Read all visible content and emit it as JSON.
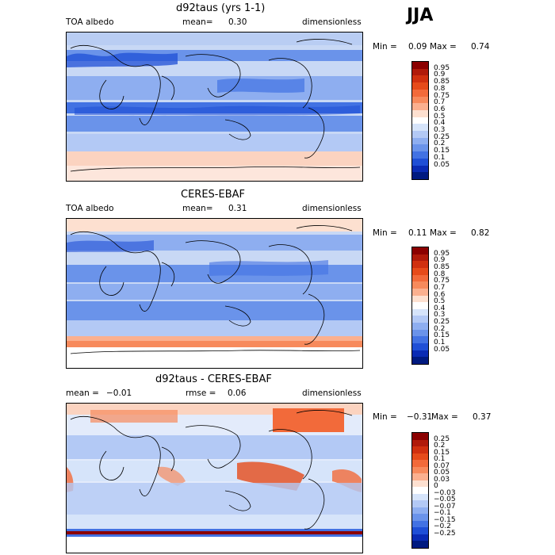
{
  "season": "JJA",
  "panels": [
    {
      "title": "d92taus (yrs 1-1)",
      "variable": "TOA albedo",
      "stat_label": "mean=",
      "stat_value": "0.30",
      "units": "dimensionless",
      "min_label": "Min =",
      "min_value": "0.09",
      "max_label": "Max =",
      "max_value": "0.74",
      "colorbar": {
        "levels": [
          "0.95",
          "0.9",
          "0.85",
          "0.8",
          "0.75",
          "0.7",
          "0.6",
          "0.5",
          "0.4",
          "0.3",
          "0.25",
          "0.2",
          "0.15",
          "0.1",
          "0.05"
        ],
        "colors": [
          "#8b0000",
          "#b01a0a",
          "#d0300f",
          "#e64b1a",
          "#f26a3a",
          "#f78a5c",
          "#fbb08f",
          "#fde0d0",
          "#ffffff",
          "#d6e4fa",
          "#b3c9f5",
          "#8eaef0",
          "#6a93ea",
          "#4272e3",
          "#1f4fd6",
          "#0a2bb4",
          "#001a80"
        ]
      }
    },
    {
      "title": "CERES-EBAF",
      "variable": "TOA albedo",
      "stat_label": "mean=",
      "stat_value": "0.31",
      "units": "dimensionless",
      "min_label": "Min =",
      "min_value": "0.11",
      "max_label": "Max =",
      "max_value": "0.82",
      "colorbar": {
        "levels": [
          "0.95",
          "0.9",
          "0.85",
          "0.8",
          "0.75",
          "0.7",
          "0.6",
          "0.5",
          "0.4",
          "0.3",
          "0.25",
          "0.2",
          "0.15",
          "0.1",
          "0.05"
        ],
        "colors": [
          "#8b0000",
          "#b01a0a",
          "#d0300f",
          "#e64b1a",
          "#f26a3a",
          "#f78a5c",
          "#fbb08f",
          "#fde0d0",
          "#ffffff",
          "#d6e4fa",
          "#b3c9f5",
          "#8eaef0",
          "#6a93ea",
          "#4272e3",
          "#1f4fd6",
          "#0a2bb4",
          "#001a80"
        ]
      }
    },
    {
      "title": "d92taus - CERES-EBAF",
      "variable": "mean =",
      "stat_label": "rmse =",
      "stat_value": "0.06",
      "variable_value": "−0.01",
      "units": "dimensionless",
      "min_label": "Min =",
      "min_value": "−0.31",
      "max_label": "Max =",
      "max_value": "0.37",
      "colorbar": {
        "levels": [
          "0.25",
          "0.2",
          "0.15",
          "0.1",
          "0.07",
          "0.05",
          "0.03",
          "0",
          "−0.03",
          "−0.05",
          "−0.07",
          "−0.1",
          "−0.15",
          "−0.2",
          "−0.25"
        ],
        "colors": [
          "#8b0000",
          "#b01a0a",
          "#d0300f",
          "#e64b1a",
          "#f26a3a",
          "#f78a5c",
          "#fbb08f",
          "#fde0d0",
          "#ffffff",
          "#d6e4fa",
          "#b3c9f5",
          "#8eaef0",
          "#6a93ea",
          "#4272e3",
          "#1f4fd6",
          "#0a2bb4",
          "#001a80"
        ]
      }
    }
  ],
  "chart_data": [
    {
      "type": "heatmap",
      "title": "d92taus (yrs 1-1)",
      "field": "TOA albedo",
      "units": "dimensionless",
      "mean": 0.3,
      "min": 0.09,
      "max": 0.74,
      "levels": [
        0.05,
        0.1,
        0.15,
        0.2,
        0.25,
        0.3,
        0.4,
        0.5,
        0.6,
        0.7,
        0.75,
        0.8,
        0.85,
        0.9,
        0.95
      ]
    },
    {
      "type": "heatmap",
      "title": "CERES-EBAF",
      "field": "TOA albedo",
      "units": "dimensionless",
      "mean": 0.31,
      "min": 0.11,
      "max": 0.82,
      "levels": [
        0.05,
        0.1,
        0.15,
        0.2,
        0.25,
        0.3,
        0.4,
        0.5,
        0.6,
        0.7,
        0.75,
        0.8,
        0.85,
        0.9,
        0.95
      ]
    },
    {
      "type": "heatmap",
      "title": "d92taus - CERES-EBAF",
      "units": "dimensionless",
      "mean": -0.01,
      "rmse": 0.06,
      "min": -0.31,
      "max": 0.37,
      "levels": [
        -0.25,
        -0.2,
        -0.15,
        -0.1,
        -0.07,
        -0.05,
        -0.03,
        0,
        0.03,
        0.05,
        0.07,
        0.1,
        0.15,
        0.2,
        0.25
      ]
    }
  ]
}
